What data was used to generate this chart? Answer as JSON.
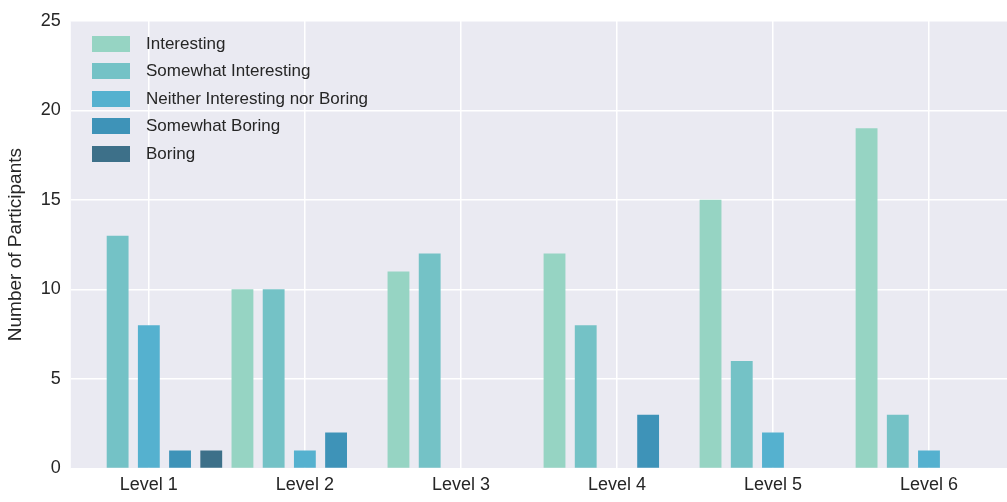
{
  "chart_data": {
    "type": "bar",
    "ylabel": "Number of Participants",
    "categories": [
      "Level 1",
      "Level 2",
      "Level 3",
      "Level 4",
      "Level 5",
      "Level 6"
    ],
    "series": [
      {
        "name": "Interesting",
        "color": "#96d4c3",
        "values": [
          0,
          10,
          11,
          12,
          15,
          19
        ]
      },
      {
        "name": "Somewhat Interesting",
        "color": "#74c2c6",
        "values": [
          13,
          10,
          12,
          8,
          6,
          3
        ]
      },
      {
        "name": "Neither Interesting nor Boring",
        "color": "#55b1cf",
        "values": [
          8,
          1,
          0,
          0,
          2,
          1
        ]
      },
      {
        "name": "Somewhat Boring",
        "color": "#3e93b8",
        "values": [
          1,
          2,
          0,
          3,
          0,
          0
        ]
      },
      {
        "name": "Boring",
        "color": "#3d7089",
        "values": [
          1,
          0,
          0,
          0,
          0,
          0
        ]
      }
    ],
    "ylim": [
      0,
      25
    ],
    "yticks": [
      0,
      5,
      10,
      15,
      20,
      25
    ],
    "grid": true,
    "legend": "top left"
  }
}
